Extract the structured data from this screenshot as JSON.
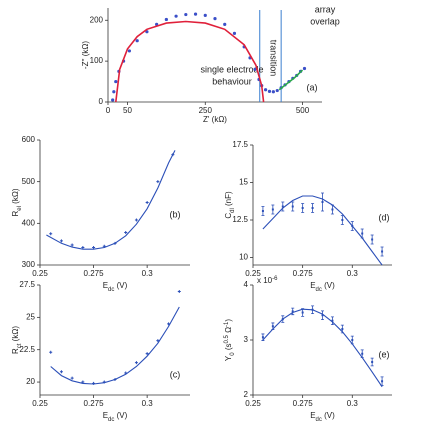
{
  "chart_data": [
    {
      "type": "scatter",
      "x_label": [
        {
          "text": "Z' (kΩ)"
        }
      ],
      "y_label": [
        {
          "text": "-Z'' (kΩ)"
        }
      ],
      "xlim": [
        0,
        550
      ],
      "ylim": [
        0,
        230
      ],
      "xticks": [
        0,
        50,
        250,
        500
      ],
      "yticks": [
        0,
        100,
        200
      ],
      "annotations": [
        "single electrode",
        "behaviour",
        "transition",
        "array",
        "overlap",
        "(a)"
      ],
      "vlines": [
        390,
        445
      ],
      "vline_color": "#3a7fd0",
      "series": [
        {
          "mode": "markers",
          "color": "#3b4fc8",
          "x": [
            12,
            15,
            20,
            28,
            40,
            55,
            75,
            100,
            125,
            150,
            175,
            200,
            225,
            250,
            275,
            300,
            325,
            350,
            365,
            378,
            388,
            395,
            405,
            415,
            425,
            435,
            445,
            455,
            465,
            475,
            485,
            495,
            505
          ],
          "values": [
            5,
            25,
            50,
            75,
            100,
            125,
            150,
            172,
            190,
            202,
            210,
            214,
            215,
            212,
            204,
            190,
            168,
            135,
            108,
            80,
            55,
            40,
            30,
            26,
            25,
            28,
            35,
            42,
            50,
            58,
            65,
            75,
            82
          ]
        },
        {
          "mode": "line",
          "color": "#e0203a",
          "x": [
            20,
            30,
            50,
            75,
            100,
            150,
            200,
            250,
            300,
            350,
            380,
            395,
            400
          ],
          "values": [
            0,
            80,
            130,
            160,
            178,
            193,
            197,
            193,
            178,
            140,
            90,
            40,
            0
          ]
        },
        {
          "mode": "line",
          "color": "#2aa84a",
          "x": [
            440,
            460,
            480,
            500
          ],
          "values": [
            30,
            45,
            60,
            78
          ]
        }
      ]
    },
    {
      "type": "scatter",
      "x_label": [
        {
          "text": "E"
        },
        {
          "text": "dc",
          "shift": "sub"
        },
        {
          "text": " (V)"
        }
      ],
      "y_label": [
        {
          "text": "R"
        },
        {
          "text": "el",
          "shift": "sub"
        },
        {
          "text": " (kΩ)"
        }
      ],
      "xlim": [
        0.25,
        0.32
      ],
      "ylim": [
        300,
        600
      ],
      "xticks": [
        0.25,
        0.275,
        0.3
      ],
      "yticks": [
        300,
        400,
        500,
        600
      ],
      "annotations": [
        "(b)"
      ],
      "series": [
        {
          "mode": "markers",
          "color": "#2b4fb8",
          "x": [
            0.255,
            0.26,
            0.265,
            0.27,
            0.275,
            0.28,
            0.285,
            0.29,
            0.295,
            0.3,
            0.305,
            0.312
          ],
          "values": [
            375,
            358,
            348,
            342,
            342,
            345,
            352,
            378,
            408,
            450,
            500,
            565
          ]
        },
        {
          "mode": "line",
          "color": "#2b4fb8",
          "x": [
            0.253,
            0.26,
            0.265,
            0.27,
            0.275,
            0.28,
            0.285,
            0.29,
            0.295,
            0.3,
            0.305,
            0.31,
            0.313
          ],
          "values": [
            372,
            352,
            343,
            338,
            338,
            342,
            352,
            370,
            398,
            435,
            485,
            545,
            575
          ]
        }
      ]
    },
    {
      "type": "scatter",
      "x_label": [
        {
          "text": "E"
        },
        {
          "text": "dc",
          "shift": "sub"
        },
        {
          "text": " (V)"
        }
      ],
      "y_label": [
        {
          "text": "C"
        },
        {
          "text": "dl",
          "shift": "sub"
        },
        {
          "text": " (nF)"
        }
      ],
      "xlim": [
        0.25,
        0.32
      ],
      "ylim": [
        9.5,
        17.5
      ],
      "xticks": [
        0.25,
        0.275,
        0.3
      ],
      "yticks": [
        10,
        12.5,
        15,
        17.5
      ],
      "annotations": [
        "(d)"
      ],
      "series": [
        {
          "mode": "errorbars",
          "color": "#2b4fb8",
          "x": [
            0.255,
            0.26,
            0.265,
            0.27,
            0.275,
            0.28,
            0.285,
            0.29,
            0.295,
            0.3,
            0.305,
            0.31,
            0.315
          ],
          "values": [
            13.1,
            13.2,
            13.4,
            13.4,
            13.3,
            13.3,
            13.7,
            13.2,
            12.5,
            12.1,
            11.6,
            11.2,
            10.4
          ],
          "errors": [
            0.3,
            0.3,
            0.3,
            0.3,
            0.3,
            0.3,
            0.6,
            0.3,
            0.3,
            0.3,
            0.3,
            0.3,
            0.3
          ]
        },
        {
          "mode": "line",
          "color": "#2b4fb8",
          "x": [
            0.255,
            0.26,
            0.265,
            0.27,
            0.275,
            0.28,
            0.285,
            0.29,
            0.295,
            0.3,
            0.305,
            0.31,
            0.315
          ],
          "values": [
            11.9,
            12.6,
            13.3,
            13.8,
            14.1,
            14.1,
            13.9,
            13.5,
            12.9,
            12.1,
            11.3,
            10.4,
            9.5
          ]
        }
      ]
    },
    {
      "type": "scatter",
      "x_label": [
        {
          "text": "E"
        },
        {
          "text": "dc",
          "shift": "sub"
        },
        {
          "text": " (V)"
        }
      ],
      "y_label": [
        {
          "text": "R"
        },
        {
          "text": "ct",
          "shift": "sub"
        },
        {
          "text": " (kΩ)"
        }
      ],
      "xlim": [
        0.25,
        0.32
      ],
      "ylim": [
        19,
        27.5
      ],
      "xticks": [
        0.25,
        0.275,
        0.3
      ],
      "yticks": [
        20,
        22.5,
        25,
        27.5
      ],
      "annotations": [
        "(c)"
      ],
      "series": [
        {
          "mode": "markers",
          "color": "#2b4fb8",
          "x": [
            0.255,
            0.26,
            0.265,
            0.27,
            0.275,
            0.28,
            0.285,
            0.29,
            0.295,
            0.3,
            0.305,
            0.31,
            0.315
          ],
          "values": [
            22.3,
            20.8,
            20.3,
            20.0,
            19.9,
            20.0,
            20.2,
            20.7,
            21.5,
            22.2,
            23.2,
            24.5,
            27.0
          ]
        },
        {
          "mode": "line",
          "color": "#2b4fb8",
          "x": [
            0.255,
            0.26,
            0.265,
            0.27,
            0.275,
            0.28,
            0.285,
            0.29,
            0.295,
            0.3,
            0.305,
            0.31,
            0.315
          ],
          "values": [
            21.2,
            20.5,
            20.1,
            19.9,
            19.85,
            19.95,
            20.2,
            20.6,
            21.2,
            22.0,
            23.0,
            24.3,
            25.8
          ]
        }
      ]
    },
    {
      "type": "scatter",
      "x_label": [
        {
          "text": "E"
        },
        {
          "text": "dc",
          "shift": "sub"
        },
        {
          "text": " (V)"
        }
      ],
      "y_label": [
        {
          "text": "Y"
        },
        {
          "text": "0",
          "shift": "sub"
        },
        {
          "text": " (s"
        },
        {
          "text": "0.5",
          "shift": "super"
        },
        {
          "text": " Ω"
        },
        {
          "text": "-1",
          "shift": "super"
        },
        {
          "text": ")"
        }
      ],
      "y_multiplier": [
        {
          "text": "x 10"
        },
        {
          "text": "-6",
          "shift": "super"
        }
      ],
      "xlim": [
        0.25,
        0.32
      ],
      "ylim": [
        2,
        4
      ],
      "xticks": [
        0.25,
        0.275,
        0.3
      ],
      "yticks": [
        2,
        3,
        4
      ],
      "annotations": [
        "(e)"
      ],
      "series": [
        {
          "mode": "errorbars",
          "color": "#2b4fb8",
          "x": [
            0.255,
            0.26,
            0.265,
            0.27,
            0.275,
            0.28,
            0.285,
            0.29,
            0.295,
            0.3,
            0.305,
            0.31,
            0.315
          ],
          "values": [
            3.05,
            3.25,
            3.38,
            3.52,
            3.5,
            3.55,
            3.45,
            3.35,
            3.2,
            3.0,
            2.75,
            2.6,
            2.25
          ],
          "errors": [
            0.06,
            0.06,
            0.06,
            0.06,
            0.07,
            0.07,
            0.08,
            0.07,
            0.07,
            0.07,
            0.07,
            0.07,
            0.08
          ]
        },
        {
          "mode": "line",
          "color": "#2b4fb8",
          "x": [
            0.255,
            0.26,
            0.265,
            0.27,
            0.275,
            0.28,
            0.285,
            0.29,
            0.295,
            0.3,
            0.305,
            0.31,
            0.315
          ],
          "values": [
            3.0,
            3.2,
            3.38,
            3.5,
            3.56,
            3.55,
            3.47,
            3.33,
            3.15,
            2.93,
            2.68,
            2.42,
            2.15
          ]
        }
      ]
    }
  ]
}
